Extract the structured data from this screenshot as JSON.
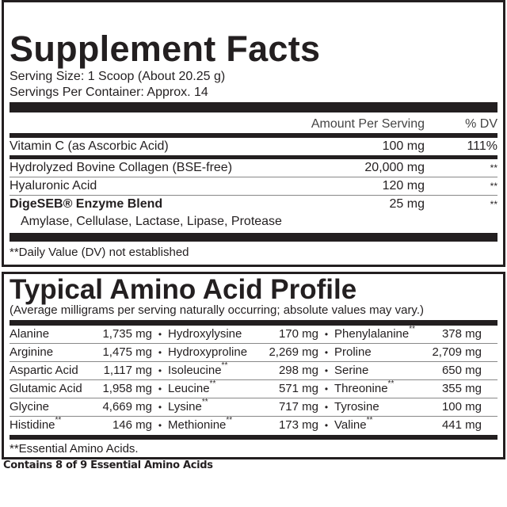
{
  "supplement": {
    "title": "Supplement Facts",
    "serving_size": "Serving Size: 1 Scoop (About 20.25 g)",
    "servings_per_container": "Servings Per Container: Approx. 14",
    "header_amount": "Amount Per Serving",
    "header_dv": "% DV",
    "rows": [
      {
        "name": "Vitamin C (as Ascorbic Acid)",
        "amount": "100 mg",
        "dv": "111%"
      },
      {
        "name": "Hydrolyzed Bovine Collagen (BSE-free)",
        "amount": "20,000 mg",
        "dv": "**"
      },
      {
        "name": "Hyaluronic Acid",
        "amount": "120 mg",
        "dv": "**"
      },
      {
        "name": "DigeSEB® Enzyme Blend",
        "amount": "25 mg",
        "dv": "**"
      }
    ],
    "blend_ingredients": "Amylase, Cellulase, Lactase, Lipase, Protease",
    "footnote": "**Daily Value (DV) not established"
  },
  "amino": {
    "title": "Typical Amino Acid Profile",
    "subtitle": "(Average milligrams per serving naturally occurring; absolute values may vary.)",
    "essential_mark": "**",
    "rows": [
      [
        {
          "name": "Alanine",
          "value": "1,735 mg"
        },
        {
          "name": "Hydroxylysine",
          "value": "170 mg"
        },
        {
          "name": "Phenylalanine",
          "value": "378 mg",
          "essential": true
        }
      ],
      [
        {
          "name": "Arginine",
          "value": "1,475 mg"
        },
        {
          "name": "Hydroxyproline",
          "value": "2,269 mg"
        },
        {
          "name": "Proline",
          "value": "2,709 mg"
        }
      ],
      [
        {
          "name": "Aspartic Acid",
          "value": "1,117 mg"
        },
        {
          "name": "Isoleucine",
          "value": "298 mg",
          "essential": true
        },
        {
          "name": "Serine",
          "value": "650 mg"
        }
      ],
      [
        {
          "name": "Glutamic Acid",
          "value": "1,958 mg"
        },
        {
          "name": "Leucine",
          "value": "571 mg",
          "essential": true
        },
        {
          "name": "Threonine",
          "value": "355 mg",
          "essential": true
        }
      ],
      [
        {
          "name": "Glycine",
          "value": "4,669 mg"
        },
        {
          "name": "Lysine",
          "value": "717 mg",
          "essential": true
        },
        {
          "name": "Tyrosine",
          "value": "100 mg"
        }
      ],
      [
        {
          "name": "Histidine",
          "value": "146 mg",
          "essential": true
        },
        {
          "name": "Methionine",
          "value": "173 mg",
          "essential": true
        },
        {
          "name": "Valine",
          "value": "441 mg",
          "essential": true
        }
      ]
    ],
    "footnote": "**Essential Amino Acids."
  },
  "bottom_note": "Contains 8 of 9 Essential Amino Acids"
}
